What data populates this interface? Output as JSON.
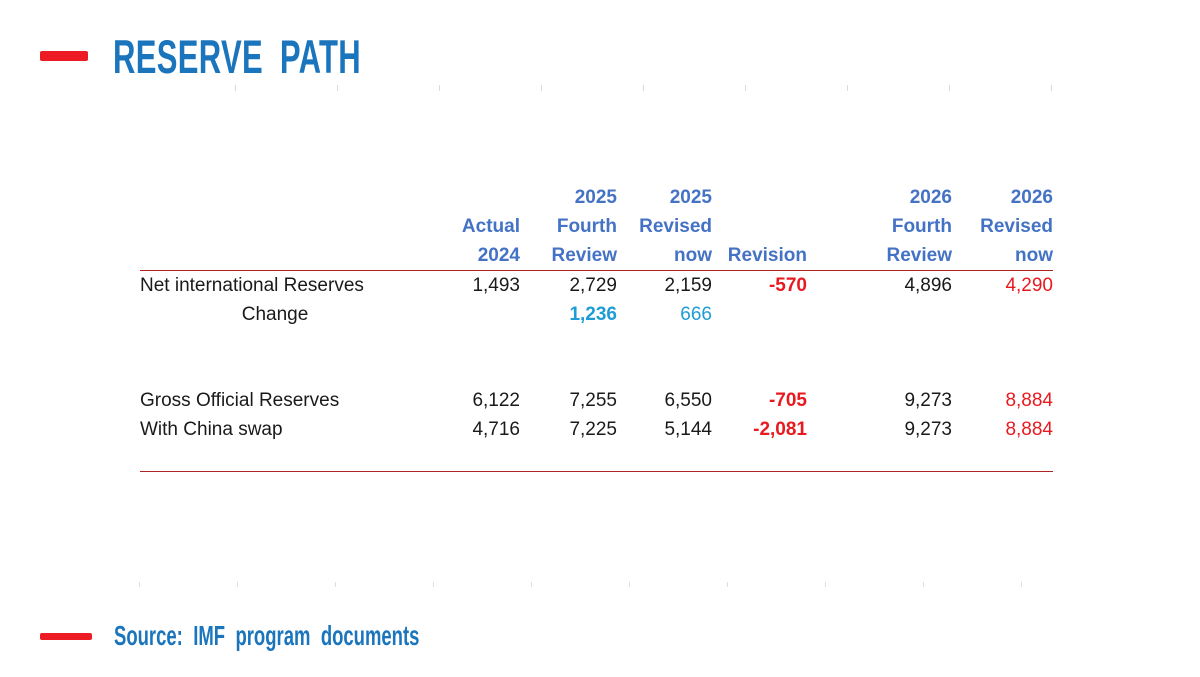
{
  "slide": {
    "title": "RESERVE PATH",
    "source": "Source: IMF program documents"
  },
  "colors": {
    "title_blue": "#1b75bc",
    "header_blue": "#4472c4",
    "value_red": "#e8191f",
    "value_cyan": "#1e9cd8",
    "accent_red": "#ed1c24",
    "rule_red": "#b22222",
    "text_black": "#1a1a1a"
  },
  "table": {
    "header": {
      "col_actual": [
        "",
        "Actual",
        "2024"
      ],
      "col_2025_fourth": [
        "2025",
        "Fourth",
        "Review"
      ],
      "col_2025_revised": [
        "2025",
        "Revised",
        "now"
      ],
      "col_revision": [
        "",
        "",
        "Revision"
      ],
      "col_2026_fourth": [
        "2026",
        "Fourth",
        "Review"
      ],
      "col_2026_revised": [
        "2026",
        "Revised",
        "now"
      ]
    },
    "rows": {
      "nir": {
        "label": "Net international Reserves",
        "actual": "1,493",
        "fourth_2025": "2,729",
        "revised_2025": "2,159",
        "revision": "-570",
        "fourth_2026": "4,896",
        "revised_2026": "4,290"
      },
      "change": {
        "label": "Change",
        "fourth_2025": "1,236",
        "revised_2025": "666"
      },
      "gross": {
        "label": "Gross Official Reserves",
        "actual": "6,122",
        "fourth_2025": "7,255",
        "revised_2025": "6,550",
        "revision": "-705",
        "fourth_2026": "9,273",
        "revised_2026": "8,884"
      },
      "china_swap": {
        "label": "With China swap",
        "actual": "4,716",
        "fourth_2025": "7,225",
        "revised_2025": "5,144",
        "revision": "-2,081",
        "fourth_2026": "9,273",
        "revised_2026": "8,884"
      }
    }
  }
}
